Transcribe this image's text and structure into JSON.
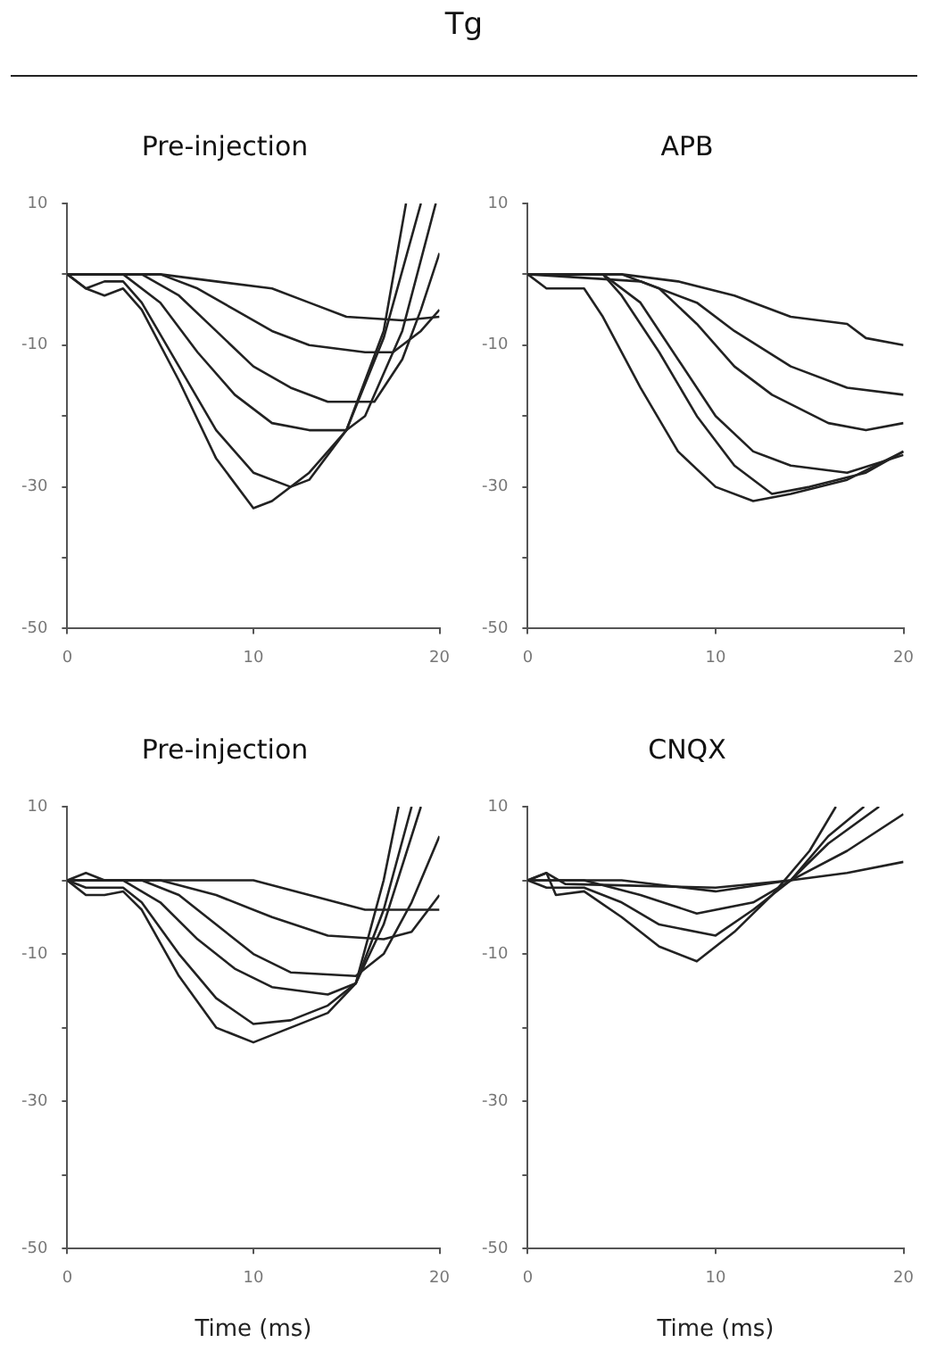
{
  "chart_data": [
    {
      "type": "line",
      "title": "Pre-injection",
      "annotations": [
        "Tg"
      ],
      "xlim": [
        0,
        20
      ],
      "xticks": [
        0,
        10,
        20
      ],
      "ylim": [
        -50,
        10
      ],
      "yticks": [
        10,
        {
          "value": 0,
          "label": null
        },
        -10,
        {
          "value": -20,
          "label": null
        },
        -30,
        {
          "value": -40,
          "label": null
        },
        -50
      ],
      "grid": false,
      "legend": false,
      "marker": "none",
      "line_style": "solid",
      "series": [
        {
          "color": "#222222",
          "x": [
            0,
            5,
            8,
            11,
            13,
            15,
            18,
            20
          ],
          "values": [
            0,
            0,
            -1,
            -2,
            -4,
            -6,
            -6.5,
            -6
          ]
        },
        {
          "color": "#222222",
          "x": [
            0,
            5,
            7,
            9,
            11,
            13,
            16,
            17.5,
            19,
            20
          ],
          "values": [
            0,
            0,
            -2,
            -5,
            -8,
            -10,
            -11,
            -11,
            -8,
            -5
          ]
        },
        {
          "color": "#222222",
          "x": [
            0,
            4,
            6,
            8,
            10,
            12,
            14,
            16.5,
            18,
            19,
            20
          ],
          "values": [
            0,
            0,
            -3,
            -8,
            -13,
            -16,
            -18,
            -18,
            -12,
            -5,
            3
          ]
        },
        {
          "color": "#222222",
          "x": [
            0,
            3,
            5,
            7,
            9,
            11,
            13,
            15,
            16,
            18,
            19.8
          ],
          "values": [
            0,
            0,
            -4,
            -11,
            -17,
            -21,
            -22,
            -22,
            -20,
            -8,
            10
          ]
        },
        {
          "color": "#222222",
          "x": [
            0,
            1,
            2,
            3,
            4,
            6,
            8,
            10,
            12,
            13,
            15,
            17,
            19
          ],
          "values": [
            0,
            -2,
            -1,
            -1,
            -4,
            -13,
            -22,
            -28,
            -30,
            -29,
            -22,
            -9,
            10
          ]
        },
        {
          "color": "#222222",
          "x": [
            0,
            1,
            2,
            3,
            4,
            6,
            8,
            10,
            11,
            13,
            15,
            17,
            18.2
          ],
          "values": [
            0,
            -2,
            -3,
            -2,
            -5,
            -15,
            -26,
            -33,
            -32,
            -28,
            -22,
            -8,
            10
          ]
        }
      ]
    },
    {
      "type": "line",
      "title": "APB",
      "xlim": [
        0,
        20
      ],
      "xticks": [
        0,
        10,
        20
      ],
      "ylim": [
        -50,
        10
      ],
      "yticks": [
        10,
        {
          "value": 0,
          "label": null
        },
        -10,
        {
          "value": -20,
          "label": null
        },
        -30,
        {
          "value": -40,
          "label": null
        },
        -50
      ],
      "grid": false,
      "legend": false,
      "marker": "none",
      "line_style": "solid",
      "series": [
        {
          "color": "#222222",
          "x": [
            0,
            5,
            8,
            11,
            14,
            17,
            18,
            20
          ],
          "values": [
            0,
            0,
            -1,
            -3,
            -6,
            -7,
            -9,
            -10
          ]
        },
        {
          "color": "#222222",
          "x": [
            0,
            6,
            9,
            11,
            14,
            17,
            20
          ],
          "values": [
            0,
            -1,
            -4,
            -8,
            -13,
            -16,
            -17
          ]
        },
        {
          "color": "#222222",
          "x": [
            0,
            5,
            7,
            9,
            11,
            13,
            16,
            18,
            20
          ],
          "values": [
            0,
            0,
            -2,
            -7,
            -13,
            -17,
            -21,
            -22,
            -21
          ]
        },
        {
          "color": "#222222",
          "x": [
            0,
            4,
            6,
            8,
            10,
            12,
            14,
            17,
            20
          ],
          "values": [
            0,
            0,
            -4,
            -12,
            -20,
            -25,
            -27,
            -28,
            -25.5
          ]
        },
        {
          "color": "#222222",
          "x": [
            0,
            4,
            5,
            7,
            9,
            11,
            13,
            15,
            18,
            20
          ],
          "values": [
            0,
            0,
            -3,
            -11,
            -20,
            -27,
            -31,
            -30,
            -28,
            -25
          ]
        },
        {
          "color": "#222222",
          "x": [
            0,
            1,
            3,
            4,
            6,
            8,
            10,
            12,
            14,
            17,
            20
          ],
          "values": [
            0,
            -2,
            -2,
            -6,
            -16,
            -25,
            -30,
            -32,
            -31,
            -29,
            -25
          ]
        }
      ]
    },
    {
      "type": "line",
      "title": "Pre-injection",
      "xlabel": "Time (ms)",
      "xlim": [
        0,
        20
      ],
      "xticks": [
        0,
        10,
        20
      ],
      "ylim": [
        -50,
        10
      ],
      "yticks": [
        10,
        {
          "value": 0,
          "label": null
        },
        -10,
        {
          "value": -20,
          "label": null
        },
        -30,
        {
          "value": -40,
          "label": null
        },
        -50
      ],
      "grid": false,
      "legend": false,
      "marker": "none",
      "line_style": "solid",
      "series": [
        {
          "color": "#222222",
          "x": [
            0,
            1,
            2,
            10,
            13,
            16,
            18,
            20
          ],
          "values": [
            0,
            1,
            0,
            0,
            -2,
            -4,
            -4,
            -4
          ]
        },
        {
          "color": "#222222",
          "x": [
            0,
            5,
            8,
            11,
            14,
            17,
            18.5,
            20
          ],
          "values": [
            0,
            0,
            -2,
            -5,
            -7.5,
            -8,
            -7,
            -2
          ]
        },
        {
          "color": "#222222",
          "x": [
            0,
            4,
            6,
            8,
            10,
            12,
            15.5,
            17,
            18.5,
            20
          ],
          "values": [
            0,
            0,
            -2,
            -6,
            -10,
            -12.5,
            -13,
            -10,
            -3,
            6
          ]
        },
        {
          "color": "#222222",
          "x": [
            0,
            3,
            5,
            7,
            9,
            11,
            14,
            15.5,
            17,
            19
          ],
          "values": [
            0,
            0,
            -3,
            -8,
            -12,
            -14.5,
            -15.5,
            -14,
            -6,
            10
          ]
        },
        {
          "color": "#222222",
          "x": [
            0,
            1,
            3,
            4,
            6,
            8,
            10,
            12,
            14,
            15.5,
            17,
            18.5
          ],
          "values": [
            0,
            -1,
            -1,
            -3,
            -10,
            -16,
            -19.5,
            -19,
            -17,
            -14,
            -4,
            10
          ]
        },
        {
          "color": "#222222",
          "x": [
            0,
            1,
            2,
            3,
            4,
            6,
            8,
            10,
            12,
            14,
            15.5,
            17,
            17.8
          ],
          "values": [
            0,
            -2,
            -2,
            -1.5,
            -4,
            -13,
            -20,
            -22,
            -20,
            -18,
            -14,
            0,
            10
          ]
        }
      ]
    },
    {
      "type": "line",
      "title": "CNQX",
      "xlabel": "Time (ms)",
      "xlim": [
        0,
        20
      ],
      "xticks": [
        0,
        10,
        20
      ],
      "ylim": [
        -50,
        10
      ],
      "yticks": [
        10,
        {
          "value": 0,
          "label": null
        },
        -10,
        {
          "value": -20,
          "label": null
        },
        -30,
        {
          "value": -40,
          "label": null
        },
        -50
      ],
      "grid": false,
      "legend": false,
      "marker": "none",
      "line_style": "solid",
      "series": [
        {
          "color": "#222222",
          "x": [
            0,
            1,
            2,
            10,
            14,
            17,
            20
          ],
          "values": [
            0,
            1,
            -0.5,
            -1,
            0,
            1,
            2.5
          ]
        },
        {
          "color": "#222222",
          "x": [
            0,
            5,
            10,
            14,
            17,
            20
          ],
          "values": [
            0,
            0,
            -1.5,
            0,
            4,
            9
          ]
        },
        {
          "color": "#222222",
          "x": [
            0,
            3,
            6,
            9,
            12,
            14,
            16,
            18.7
          ],
          "values": [
            0,
            0,
            -2,
            -4.5,
            -3,
            0,
            5,
            10
          ]
        },
        {
          "color": "#222222",
          "x": [
            0,
            1,
            3,
            5,
            7,
            10,
            12,
            14,
            16,
            17.9
          ],
          "values": [
            0,
            -1,
            -1,
            -3,
            -6,
            -7.5,
            -4,
            0,
            6,
            10
          ]
        },
        {
          "color": "#222222",
          "x": [
            0,
            1,
            1.5,
            3,
            5,
            7,
            9,
            11,
            13,
            15,
            16.4
          ],
          "values": [
            0,
            1,
            -2,
            -1.5,
            -5,
            -9,
            -11,
            -7,
            -2,
            4,
            10
          ]
        }
      ]
    }
  ]
}
